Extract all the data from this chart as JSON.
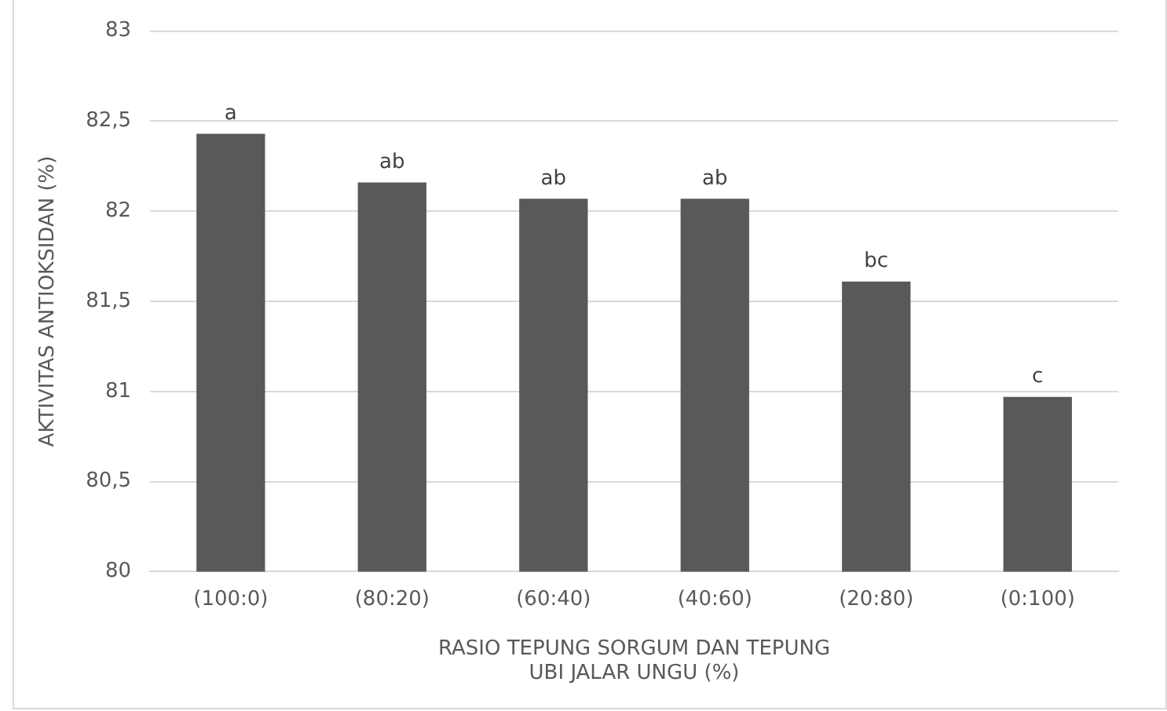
{
  "chart_data": {
    "type": "bar",
    "xlabel": "RASIO TEPUNG SORGUM DAN TEPUNG UBI JALAR UNGU (%)",
    "ylabel": "AKTIVITAS ANTIOKSIDAN (%)",
    "categories": [
      "(100:0)",
      "(80:20)",
      "(60:40)",
      "(40:60)",
      "(20:80)",
      "(0:100)"
    ],
    "values": [
      82.43,
      82.16,
      82.07,
      82.07,
      81.61,
      80.97
    ],
    "color": "#595959",
    "ylim": [
      80,
      83
    ],
    "yticks": [
      {
        "value": 80,
        "label": "80"
      },
      {
        "value": 80.5,
        "label": "80,5"
      },
      {
        "value": 81,
        "label": "81"
      },
      {
        "value": 81.5,
        "label": "81,5"
      },
      {
        "value": 82,
        "label": "82"
      },
      {
        "value": 82.5,
        "label": "82,5"
      },
      {
        "value": 83,
        "label": "83"
      }
    ],
    "grid": "y",
    "legend": false,
    "annotations": [
      {
        "text": "a",
        "x": "(100:0)",
        "y": 82.43
      },
      {
        "text": "ab",
        "x": "(80:20)",
        "y": 82.16
      },
      {
        "text": "ab",
        "x": "(60:40)",
        "y": 82.07
      },
      {
        "text": "ab",
        "x": "(40:60)",
        "y": 82.07
      },
      {
        "text": "bc",
        "x": "(20:80)",
        "y": 81.61
      },
      {
        "text": "c",
        "x": "(0:100)",
        "y": 80.97
      }
    ]
  }
}
